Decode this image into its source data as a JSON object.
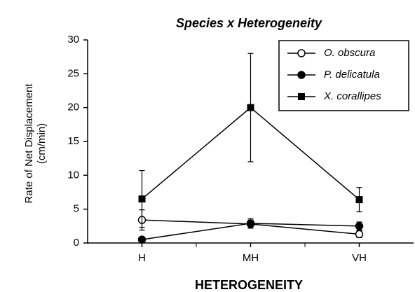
{
  "chart_data": {
    "type": "line",
    "title": "Species x Heterogeneity",
    "x_label": "HETEROGENEITY",
    "y_label": [
      "Rate of Net Displacement",
      "(cm/min)"
    ],
    "categories": [
      "H",
      "MH",
      "VH"
    ],
    "series": [
      {
        "name": "O. obscura",
        "color": "#000000",
        "marker": "open-circle",
        "values": [
          3.4,
          2.8,
          1.3
        ],
        "errors": [
          1.5,
          0.6,
          0.5
        ]
      },
      {
        "name": "P. delicatula",
        "color": "#000000",
        "marker": "filled-circle",
        "values": [
          0.5,
          2.9,
          2.5
        ],
        "errors": [
          0.3,
          0.7,
          0.6
        ]
      },
      {
        "name": "X. corallipes",
        "color": "#000000",
        "marker": "filled-square",
        "values": [
          6.5,
          20,
          6.4
        ],
        "errors": [
          4.2,
          8,
          1.8
        ]
      }
    ],
    "ylim": [
      0,
      30
    ],
    "yticks": [
      0,
      5,
      10,
      15,
      20,
      25,
      30
    ],
    "legend": "upper right"
  }
}
